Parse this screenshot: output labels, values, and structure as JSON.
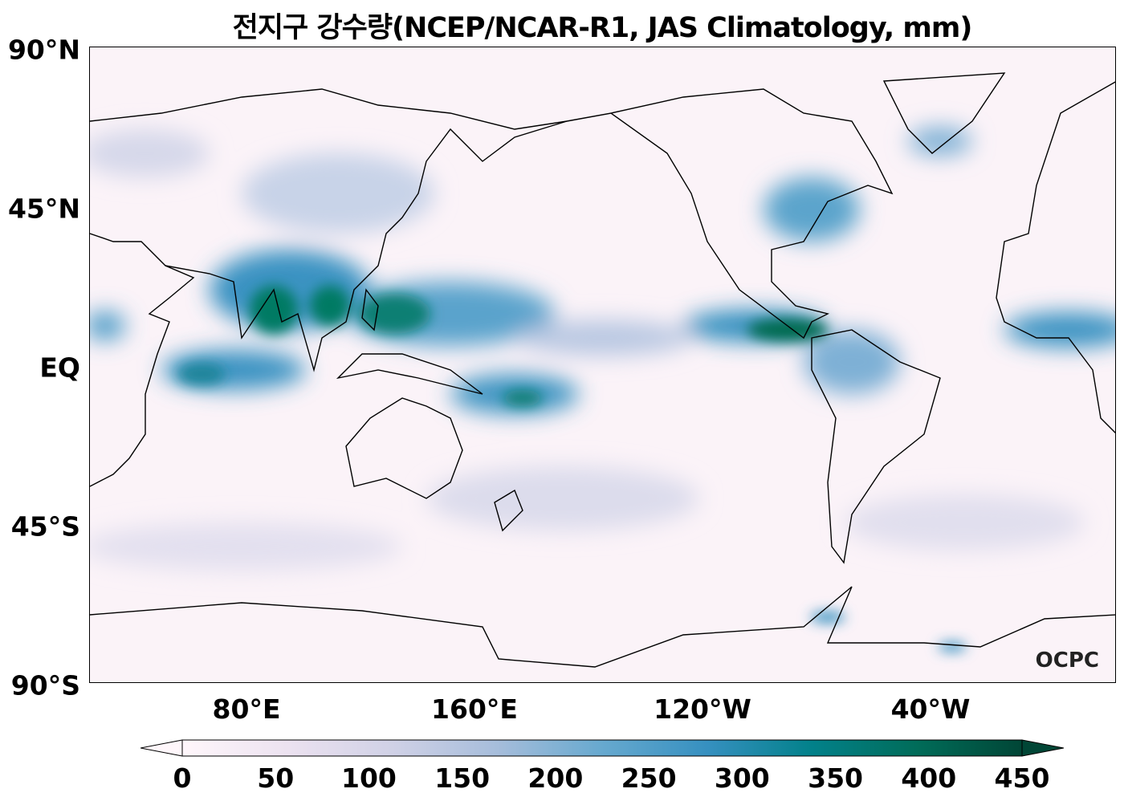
{
  "title": "전지구 강수량(NCEP/NCAR-R1, JAS Climatology, mm)",
  "y_axis": {
    "ticks": [
      "90°N",
      "45°N",
      "EQ",
      "45°S",
      "90°S"
    ]
  },
  "x_axis": {
    "ticks": [
      "80°E",
      "160°E",
      "120°W",
      "40°W"
    ]
  },
  "colorbar": {
    "ticks": [
      "0",
      "50",
      "100",
      "150",
      "200",
      "250",
      "300",
      "350",
      "400",
      "450"
    ],
    "min": 0,
    "max": 450,
    "extend": "both",
    "colors": [
      "#fff7fb",
      "#ece2f0",
      "#d0d1e6",
      "#a6bddb",
      "#67a9cf",
      "#3690c0",
      "#02818a",
      "#016c59",
      "#014636"
    ]
  },
  "logo": "OCPC"
}
